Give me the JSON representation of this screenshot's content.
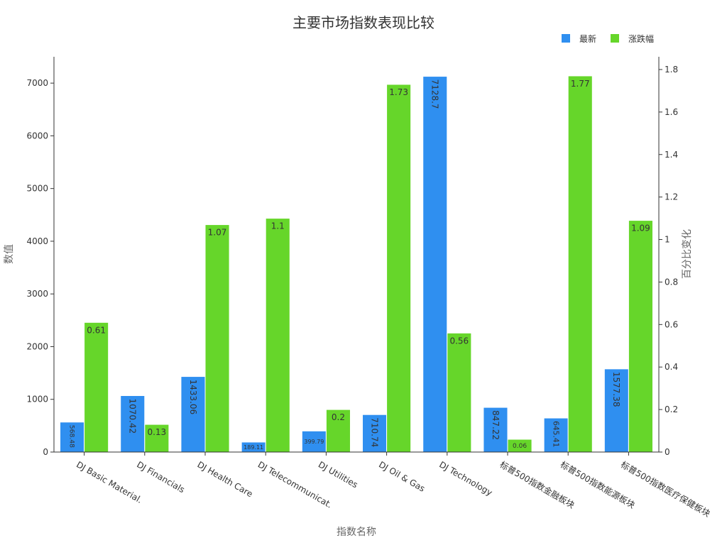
{
  "chart_data": {
    "type": "bar",
    "title": "主要市场指数表现比较",
    "xlabel": "指数名称",
    "ylabel": "数值",
    "y2label": "百分比变化",
    "categories": [
      "DJ Basic Material.",
      "DJ Financials",
      "DJ Health Care",
      "DJ Telecommunicat.",
      "DJ Utilities",
      "DJ Oil & Gas",
      "DJ Technology",
      "标普500指数金融板块",
      "标普500指数能源板块",
      "标普500指数医疗保健板块"
    ],
    "series": [
      {
        "name": "最新",
        "axis": "left",
        "color": "#2f8ff0",
        "values": [
          568.48,
          1070.42,
          1433.06,
          189.11,
          399.79,
          710.74,
          7128.7,
          847.22,
          645.41,
          1577.38
        ],
        "labels": [
          "568.48",
          "1070.42",
          "1433.06",
          "189.11",
          "399.79",
          "710.74",
          "7128.7",
          "847.22",
          "645.41",
          "1577.38"
        ]
      },
      {
        "name": "涨跌幅",
        "axis": "right",
        "color": "#66d62a",
        "values": [
          0.61,
          0.13,
          1.07,
          1.1,
          0.2,
          1.73,
          0.56,
          0.06,
          1.77,
          1.09
        ],
        "labels": [
          "0.61",
          "0.13",
          "1.07",
          "1.1",
          "0.2",
          "1.73",
          "0.56",
          "0.06",
          "1.77",
          "1.09"
        ]
      }
    ],
    "y_left": {
      "min": 0,
      "max": 7500,
      "ticks": [
        "0",
        "1000",
        "2000",
        "3000",
        "4000",
        "5000",
        "6000",
        "7000"
      ]
    },
    "y_right": {
      "min": 0,
      "max": 1.86,
      "ticks": [
        "0",
        "0.2",
        "0.4",
        "0.6",
        "0.8",
        "1",
        "1.2",
        "1.4",
        "1.6",
        "1.8"
      ]
    },
    "grid": false,
    "legend": "top-right"
  }
}
